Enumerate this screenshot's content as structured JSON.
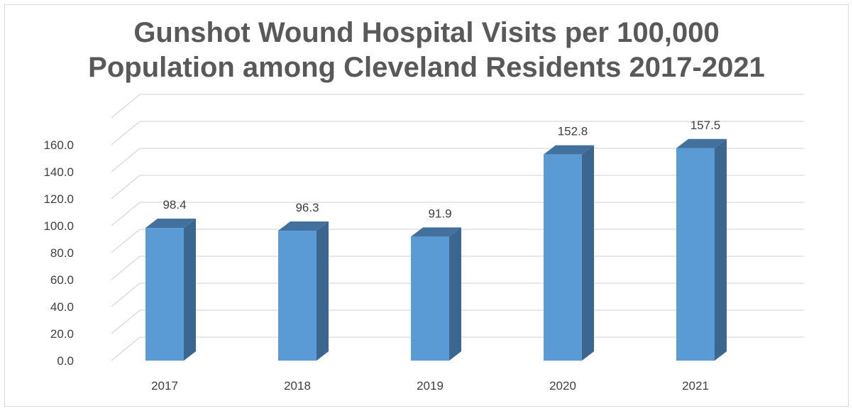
{
  "chart_data": {
    "type": "bar",
    "title_line1": "Gunshot Wound Hospital Visits per 100,000",
    "title_line2": "Population among Cleveland Residents 2017-2021",
    "categories": [
      "2017",
      "2018",
      "2019",
      "2020",
      "2021"
    ],
    "values": [
      98.4,
      96.3,
      91.9,
      152.8,
      157.5
    ],
    "data_labels": [
      "98.4",
      "96.3",
      "91.9",
      "152.8",
      "157.5"
    ],
    "ylim": [
      0,
      180
    ],
    "yticks": [
      "0.0",
      "20.0",
      "40.0",
      "60.0",
      "80.0",
      "100.0",
      "120.0",
      "140.0",
      "160.0"
    ],
    "xlabel": "",
    "ylabel": "",
    "grid": true,
    "legend": "none",
    "style": "3d-column",
    "colors": {
      "bar_front": "#5b9bd5",
      "bar_side": "#3b6690",
      "bar_top": "#41719c",
      "gridline": "#d9d9d9",
      "title": "#595959",
      "text": "#404040"
    }
  }
}
